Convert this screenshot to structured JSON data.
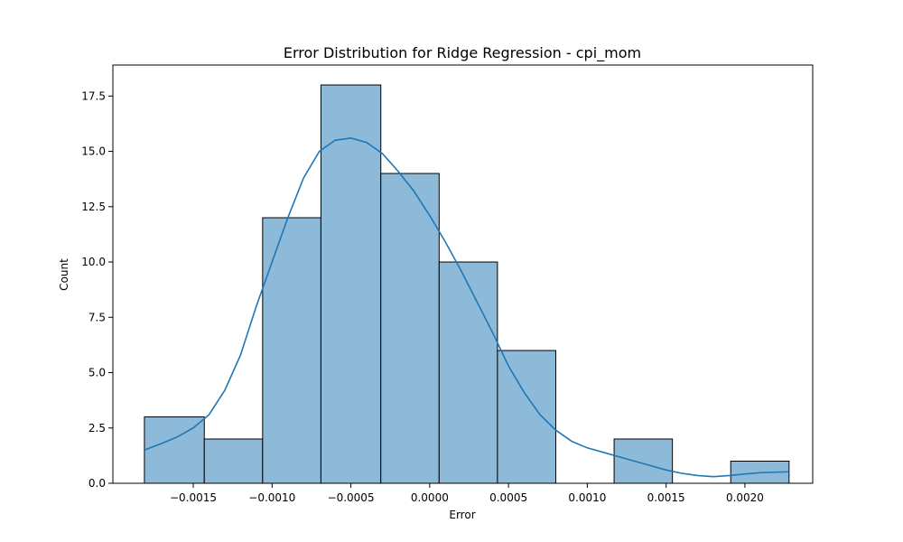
{
  "chart_data": {
    "type": "bar",
    "title": "Error Distribution for Ridge Regression - cpi_mom",
    "xlabel": "Error",
    "ylabel": "Count",
    "xlim": [
      -0.00201,
      0.00243
    ],
    "ylim": [
      0,
      18.9
    ],
    "x_ticks": [
      {
        "value": -0.0015,
        "label": "−0.0015"
      },
      {
        "value": -0.001,
        "label": "−0.0010"
      },
      {
        "value": -0.0005,
        "label": "−0.0005"
      },
      {
        "value": 0.0,
        "label": "0.0000"
      },
      {
        "value": 0.0005,
        "label": "0.0005"
      },
      {
        "value": 0.001,
        "label": "0.0010"
      },
      {
        "value": 0.0015,
        "label": "0.0015"
      },
      {
        "value": 0.002,
        "label": "0.0020"
      }
    ],
    "y_ticks": [
      {
        "value": 0,
        "label": "0.0"
      },
      {
        "value": 2.5,
        "label": "2.5"
      },
      {
        "value": 5,
        "label": "5.0"
      },
      {
        "value": 7.5,
        "label": "7.5"
      },
      {
        "value": 10,
        "label": "10.0"
      },
      {
        "value": 12.5,
        "label": "12.5"
      },
      {
        "value": 15,
        "label": "15.0"
      },
      {
        "value": 17.5,
        "label": "17.5"
      }
    ],
    "bins": [
      {
        "x0": -0.00181,
        "x1": -0.00143,
        "count": 3
      },
      {
        "x0": -0.00143,
        "x1": -0.00106,
        "count": 2
      },
      {
        "x0": -0.00106,
        "x1": -0.00069,
        "count": 12
      },
      {
        "x0": -0.00069,
        "x1": -0.00031,
        "count": 18
      },
      {
        "x0": -0.00031,
        "x1": 6e-05,
        "count": 14
      },
      {
        "x0": 6e-05,
        "x1": 0.00043,
        "count": 10
      },
      {
        "x0": 0.00043,
        "x1": 0.0008,
        "count": 6
      },
      {
        "x0": 0.0008,
        "x1": 0.00117,
        "count": 0
      },
      {
        "x0": 0.00117,
        "x1": 0.00154,
        "count": 2
      },
      {
        "x0": 0.00154,
        "x1": 0.00191,
        "count": 0
      },
      {
        "x0": 0.00191,
        "x1": 0.00228,
        "count": 1
      }
    ],
    "kde": {
      "x": [
        -0.00181,
        -0.0017,
        -0.0016,
        -0.0015,
        -0.0014,
        -0.0013,
        -0.0012,
        -0.0011,
        -0.001,
        -0.0009,
        -0.0008,
        -0.0007,
        -0.0006,
        -0.0005,
        -0.0004,
        -0.0003,
        -0.0002,
        -0.0001,
        0.0,
        0.0001,
        0.0002,
        0.0003,
        0.0004,
        0.0005,
        0.0006,
        0.0007,
        0.0008,
        0.0009,
        0.001,
        0.0011,
        0.0012,
        0.0013,
        0.0014,
        0.0015,
        0.0016,
        0.0017,
        0.0018,
        0.0019,
        0.002,
        0.0021,
        0.00228
      ],
      "y": [
        1.5,
        1.8,
        2.1,
        2.5,
        3.1,
        4.2,
        5.8,
        8.0,
        10.0,
        12.0,
        13.8,
        15.0,
        15.5,
        15.6,
        15.4,
        14.9,
        14.1,
        13.2,
        12.1,
        10.9,
        9.6,
        8.2,
        6.8,
        5.3,
        4.1,
        3.1,
        2.4,
        1.9,
        1.6,
        1.4,
        1.2,
        1.0,
        0.8,
        0.6,
        0.45,
        0.35,
        0.3,
        0.35,
        0.42,
        0.48,
        0.52
      ]
    },
    "colors": {
      "bar_fill": "#8ebad9",
      "bar_edge": "#000000",
      "kde": "#1f77b4"
    },
    "grid": false,
    "legend": "none"
  }
}
